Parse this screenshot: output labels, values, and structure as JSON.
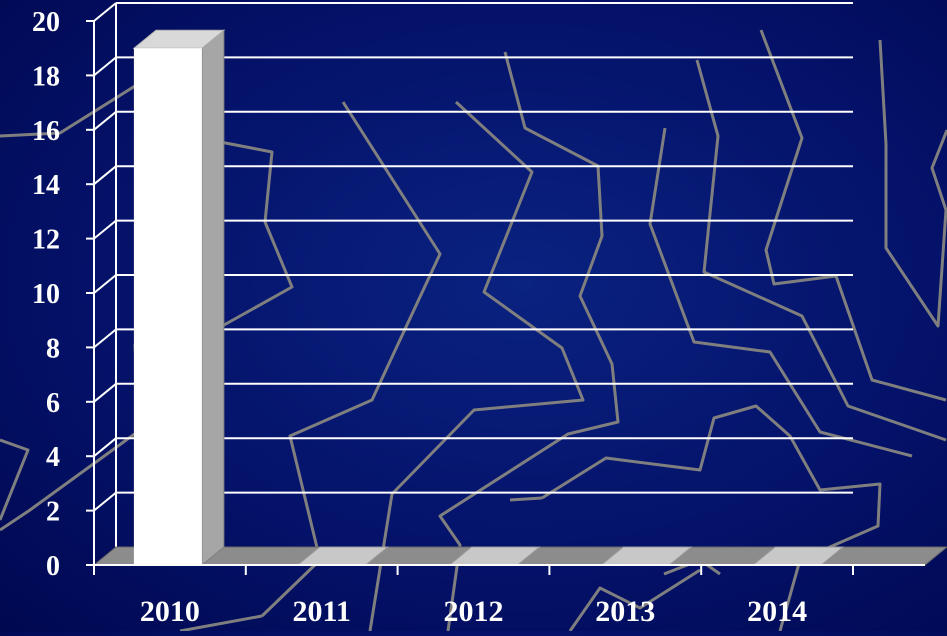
{
  "chart_data": {
    "type": "bar",
    "style": "3d-column",
    "categories": [
      "2010",
      "2011",
      "2012",
      "2013",
      "2014"
    ],
    "values": [
      19,
      0,
      0,
      0,
      0
    ],
    "ylim": [
      0,
      20
    ],
    "yticks": [
      0,
      2,
      4,
      6,
      8,
      10,
      12,
      14,
      16,
      18,
      20
    ],
    "grid": true,
    "legend": "none",
    "title": "",
    "xlabel": "",
    "ylabel": ""
  },
  "colors": {
    "background": "#04126a",
    "gridline": "#ffffff",
    "bar_face": "#ffffff",
    "bar_top": "#d9d9d9",
    "bar_side": "#a6a6a6",
    "floor": "#8c8c8c",
    "decor_lines": "#7f7f7f"
  }
}
